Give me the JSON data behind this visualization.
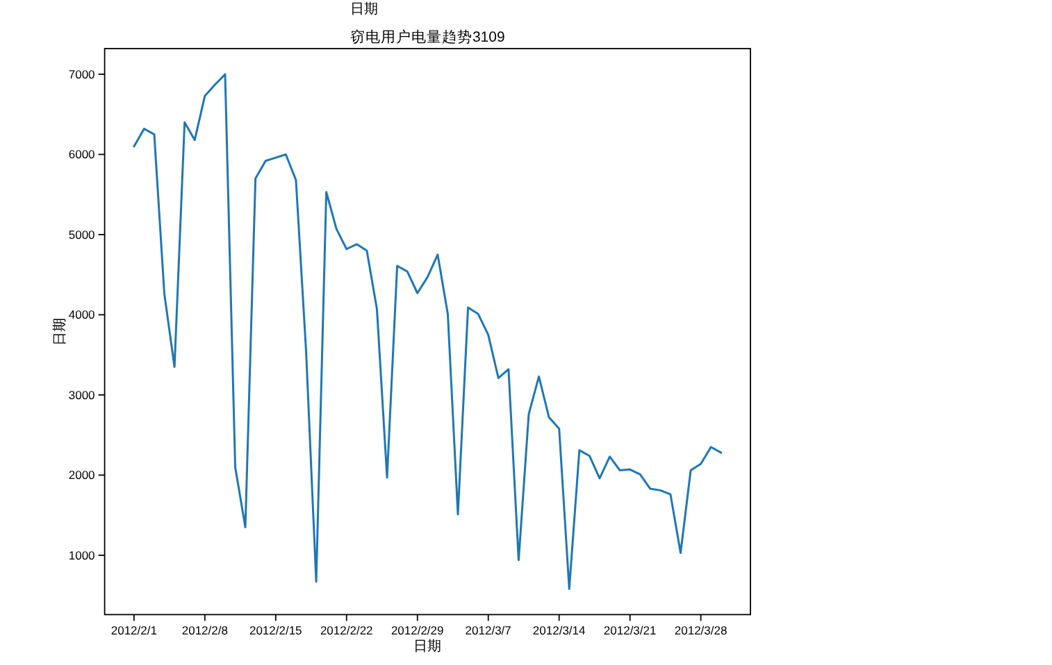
{
  "chart_data": {
    "type": "line",
    "title": "窃电用户电量趋势3109",
    "xlabel": "日期",
    "ylabel": "日期",
    "annotations": [
      "日期"
    ],
    "x": [
      "2012-02-01",
      "2012-02-02",
      "2012-02-03",
      "2012-02-04",
      "2012-02-05",
      "2012-02-06",
      "2012-02-07",
      "2012-02-08",
      "2012-02-09",
      "2012-02-10",
      "2012-02-11",
      "2012-02-12",
      "2012-02-13",
      "2012-02-14",
      "2012-02-15",
      "2012-02-16",
      "2012-02-17",
      "2012-02-18",
      "2012-02-19",
      "2012-02-20",
      "2012-02-21",
      "2012-02-22",
      "2012-02-23",
      "2012-02-24",
      "2012-02-25",
      "2012-02-26",
      "2012-02-27",
      "2012-02-28",
      "2012-02-29",
      "2012-03-01",
      "2012-03-02",
      "2012-03-03",
      "2012-03-04",
      "2012-03-05",
      "2012-03-06",
      "2012-03-07",
      "2012-03-08",
      "2012-03-09",
      "2012-03-10",
      "2012-03-11",
      "2012-03-12",
      "2012-03-13",
      "2012-03-14",
      "2012-03-15",
      "2012-03-16",
      "2012-03-17",
      "2012-03-18",
      "2012-03-19",
      "2012-03-20",
      "2012-03-21",
      "2012-03-22",
      "2012-03-23",
      "2012-03-24",
      "2012-03-25",
      "2012-03-26",
      "2012-03-27",
      "2012-03-28",
      "2012-03-29",
      "2012-03-30"
    ],
    "series": [
      {
        "color": "#1f77b4",
        "values": [
          6100,
          6320,
          6250,
          4260,
          3350,
          6400,
          6180,
          6730,
          6870,
          7000,
          2100,
          1350,
          5700,
          5920,
          5960,
          6000,
          5680,
          3550,
          670,
          5530,
          5070,
          4820,
          4880,
          4800,
          4070,
          1970,
          4610,
          4540,
          4270,
          4470,
          4750,
          4010,
          1510,
          4090,
          4010,
          3750,
          3210,
          3320,
          940,
          2760,
          3230,
          2720,
          2580,
          580,
          2310,
          2240,
          1960,
          2230,
          2060,
          2070,
          2010,
          1830,
          1810,
          1760,
          1030,
          2060,
          2140,
          2350,
          2280
        ]
      }
    ],
    "xlim": [
      "2012-01-29T02:24",
      "2012-04-01T21:36"
    ],
    "ylim": [
      260,
      7320
    ],
    "xticks": [
      {
        "value": "2012-02-01",
        "label": "2012/2/1"
      },
      {
        "value": "2012-02-08",
        "label": "2012/2/8"
      },
      {
        "value": "2012-02-15",
        "label": "2012/2/15"
      },
      {
        "value": "2012-02-22",
        "label": "2012/2/22"
      },
      {
        "value": "2012-02-29",
        "label": "2012/2/29"
      },
      {
        "value": "2012-03-07",
        "label": "2012/3/7"
      },
      {
        "value": "2012-03-14",
        "label": "2012/3/14"
      },
      {
        "value": "2012-03-21",
        "label": "2012/3/21"
      },
      {
        "value": "2012-03-28",
        "label": "2012/3/28"
      }
    ],
    "yticks": [
      1000,
      2000,
      3000,
      4000,
      5000,
      6000,
      7000
    ]
  }
}
